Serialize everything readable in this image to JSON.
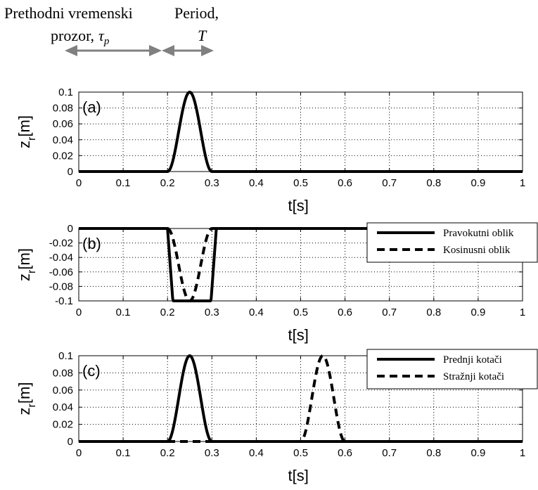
{
  "header": {
    "line1_left": "Prethodni vremenski",
    "line2_left": "prozor,",
    "tau_symbol": "τ",
    "tau_sub": "p",
    "line1_right": "Period,",
    "line2_right": "T"
  },
  "colors": {
    "arrow": "#808080",
    "grid": "#000000",
    "line": "#000000"
  },
  "chart_data": [
    {
      "type": "line",
      "panel_label": "(a)",
      "xlabel": "t[s]",
      "ylabel": "z",
      "ylabel_sub": "r",
      "ylabel_unit": "[m]",
      "xlim": [
        0,
        1
      ],
      "ylim": [
        0,
        0.1
      ],
      "xticks": [
        0,
        0.1,
        0.2,
        0.3,
        0.4,
        0.5,
        0.6,
        0.7,
        0.8,
        0.9,
        1
      ],
      "xtick_labels": [
        "0",
        "0.1",
        "0.2",
        "0.3",
        "0.4",
        "0.5",
        "0.6",
        "0.7",
        "0.8",
        "0.9",
        "1"
      ],
      "yticks": [
        0,
        0.02,
        0.04,
        0.06,
        0.08,
        0.1
      ],
      "ytick_labels": [
        "0",
        "0.02",
        "0.04",
        "0.06",
        "0.08",
        "0.1"
      ],
      "grid": true,
      "legend": null,
      "series": [
        {
          "style": "solid",
          "shape": "cosine",
          "t0": 0.2,
          "t1": 0.3,
          "amp": 0.1
        }
      ]
    },
    {
      "type": "line",
      "panel_label": "(b)",
      "xlabel": "t[s]",
      "ylabel": "z",
      "ylabel_sub": "r",
      "ylabel_unit": "[m]",
      "xlim": [
        0,
        1
      ],
      "ylim": [
        -0.1,
        0
      ],
      "xticks": [
        0,
        0.1,
        0.2,
        0.3,
        0.4,
        0.5,
        0.6,
        0.7,
        0.8,
        0.9,
        1
      ],
      "xtick_labels": [
        "0",
        "0.1",
        "0.2",
        "0.3",
        "0.4",
        "0.5",
        "0.6",
        "0.7",
        "0.8",
        "0.9",
        "1"
      ],
      "yticks": [
        -0.1,
        -0.08,
        -0.06,
        -0.04,
        -0.02,
        0
      ],
      "ytick_labels": [
        "-0.1",
        "-0.08",
        "-0.06",
        "-0.04",
        "-0.02",
        "0"
      ],
      "grid": true,
      "legend": "top-right",
      "series": [
        {
          "name": "Pravokutni oblik",
          "style": "solid",
          "shape": "trapezoid",
          "t0": 0.2,
          "t1": 0.31,
          "ramp": 0.012,
          "amp": -0.1
        },
        {
          "name": "Kosinusni oblik",
          "style": "dashed",
          "shape": "cosine",
          "t0": 0.2,
          "t1": 0.3,
          "amp": -0.1
        }
      ]
    },
    {
      "type": "line",
      "panel_label": "(c)",
      "xlabel": "t[s]",
      "ylabel": "z",
      "ylabel_sub": "r",
      "ylabel_unit": "[m]",
      "xlim": [
        0,
        1
      ],
      "ylim": [
        0,
        0.1
      ],
      "xticks": [
        0,
        0.1,
        0.2,
        0.3,
        0.4,
        0.5,
        0.6,
        0.7,
        0.8,
        0.9,
        1
      ],
      "xtick_labels": [
        "0",
        "0.1",
        "0.2",
        "0.3",
        "0.4",
        "0.5",
        "0.6",
        "0.7",
        "0.8",
        "0.9",
        "1"
      ],
      "yticks": [
        0,
        0.02,
        0.04,
        0.06,
        0.08,
        0.1
      ],
      "ytick_labels": [
        "0",
        "0.02",
        "0.04",
        "0.06",
        "0.08",
        "0.1"
      ],
      "grid": true,
      "legend": "top-right",
      "series": [
        {
          "name": "Prednji kotači",
          "style": "solid",
          "shape": "cosine",
          "t0": 0.2,
          "t1": 0.3,
          "amp": 0.1
        },
        {
          "name": "Stražnji kotači",
          "style": "dashed",
          "shape": "cosine",
          "t0": 0.5,
          "t1": 0.6,
          "amp": 0.1
        }
      ]
    }
  ]
}
